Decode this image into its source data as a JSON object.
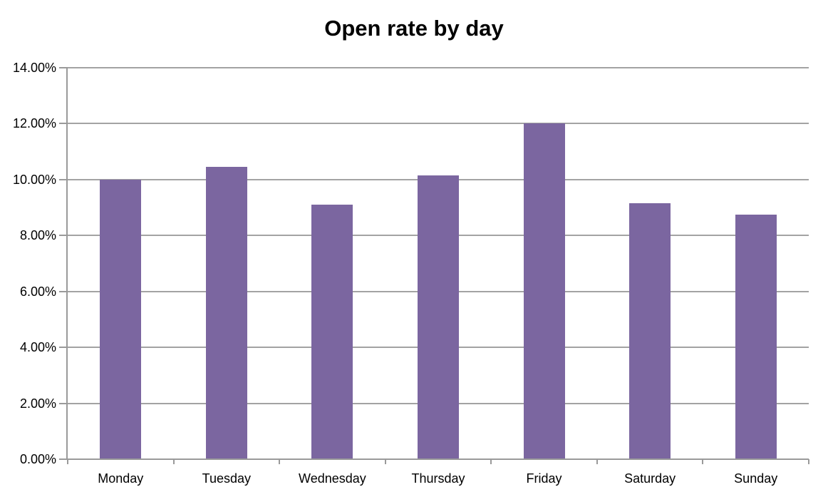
{
  "chart_data": {
    "type": "bar",
    "title": "Open rate by day",
    "categories": [
      "Monday",
      "Tuesday",
      "Wednesday",
      "Thursday",
      "Friday",
      "Saturday",
      "Sunday"
    ],
    "values": [
      10.0,
      10.45,
      9.1,
      10.15,
      12.02,
      9.15,
      8.75
    ],
    "xlabel": "",
    "ylabel": "",
    "ylim": [
      0,
      14
    ],
    "y_tick_step": 2,
    "y_tick_labels": [
      "0.00%",
      "2.00%",
      "4.00%",
      "6.00%",
      "8.00%",
      "10.00%",
      "12.00%",
      "14.00%"
    ],
    "grid": "horizontal",
    "legend": "none",
    "colors": {
      "bar": "#7B66A0",
      "gridline": "#A3A3A3",
      "axis": "#9A9A9A",
      "text": "#000000",
      "background": "#FFFFFF"
    }
  }
}
